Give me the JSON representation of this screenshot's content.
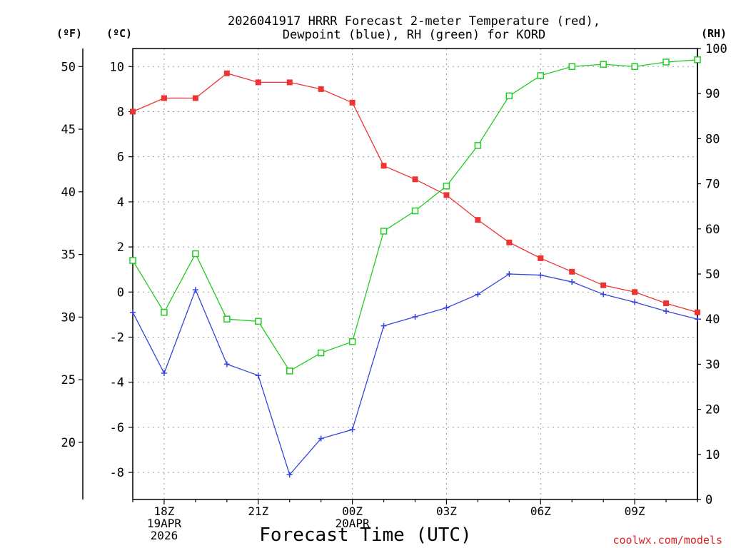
{
  "chart_data": {
    "type": "line",
    "title_line1": "2026041917 HRRR Forecast 2-meter Temperature (red),",
    "title_line2": "Dewpoint (blue), RH (green) for KORD",
    "xlabel": "Forecast Time (UTC)",
    "left_unit_f": "(ºF)",
    "left_unit_c": "(ºC)",
    "right_unit": "(RH)",
    "credit": "coolwx.com/models",
    "x_hours": [
      0,
      1,
      2,
      3,
      4,
      5,
      6,
      7,
      8,
      9,
      10,
      11,
      12,
      13,
      14,
      15,
      16,
      17,
      18
    ],
    "x_tick_labels": [
      {
        "hour": 1,
        "lines": [
          "18Z",
          "19APR",
          "2026"
        ]
      },
      {
        "hour": 4,
        "lines": [
          "21Z"
        ]
      },
      {
        "hour": 7,
        "lines": [
          "00Z",
          "20APR"
        ]
      },
      {
        "hour": 10,
        "lines": [
          "03Z"
        ]
      },
      {
        "hour": 13,
        "lines": [
          "06Z"
        ]
      },
      {
        "hour": 16,
        "lines": [
          "09Z"
        ]
      }
    ],
    "celsius_axis": {
      "ylim": [
        -9.2,
        10.8
      ],
      "ticks": [
        "-8",
        "-6",
        "-4",
        "-2",
        "0",
        "2",
        "4",
        "6",
        "8",
        "10"
      ]
    },
    "fahrenheit_axis": {
      "ticks": [
        "20",
        "25",
        "30",
        "35",
        "40",
        "45",
        "50"
      ]
    },
    "rh_axis": {
      "ylim": [
        0,
        100
      ],
      "ticks": [
        "0",
        "10",
        "20",
        "30",
        "40",
        "50",
        "60",
        "70",
        "80",
        "90",
        "100"
      ]
    },
    "series": [
      {
        "name": "Temperature",
        "unit": "C",
        "color": "#ee3333",
        "values": [
          8.0,
          8.6,
          8.6,
          9.7,
          9.3,
          9.3,
          9.0,
          8.4,
          5.6,
          5.0,
          4.3,
          3.2,
          2.2,
          1.5,
          0.9,
          0.3,
          0.0,
          -0.5,
          -0.9
        ]
      },
      {
        "name": "Dewpoint",
        "unit": "C",
        "color": "#3344dd",
        "values": [
          -0.9,
          -3.6,
          0.1,
          -3.2,
          -3.7,
          -8.1,
          -6.5,
          -6.1,
          -1.5,
          -1.1,
          -0.7,
          -0.1,
          0.8,
          0.75,
          0.45,
          -0.1,
          -0.45,
          -0.85,
          -1.2
        ]
      },
      {
        "name": "RH",
        "unit": "%",
        "color": "#22cc22",
        "values": [
          53,
          41.5,
          54.5,
          40,
          39.5,
          28.5,
          32.5,
          35,
          59.5,
          64,
          69.5,
          78.5,
          89.5,
          94,
          96,
          96.5,
          96,
          97,
          97.5
        ]
      }
    ]
  }
}
